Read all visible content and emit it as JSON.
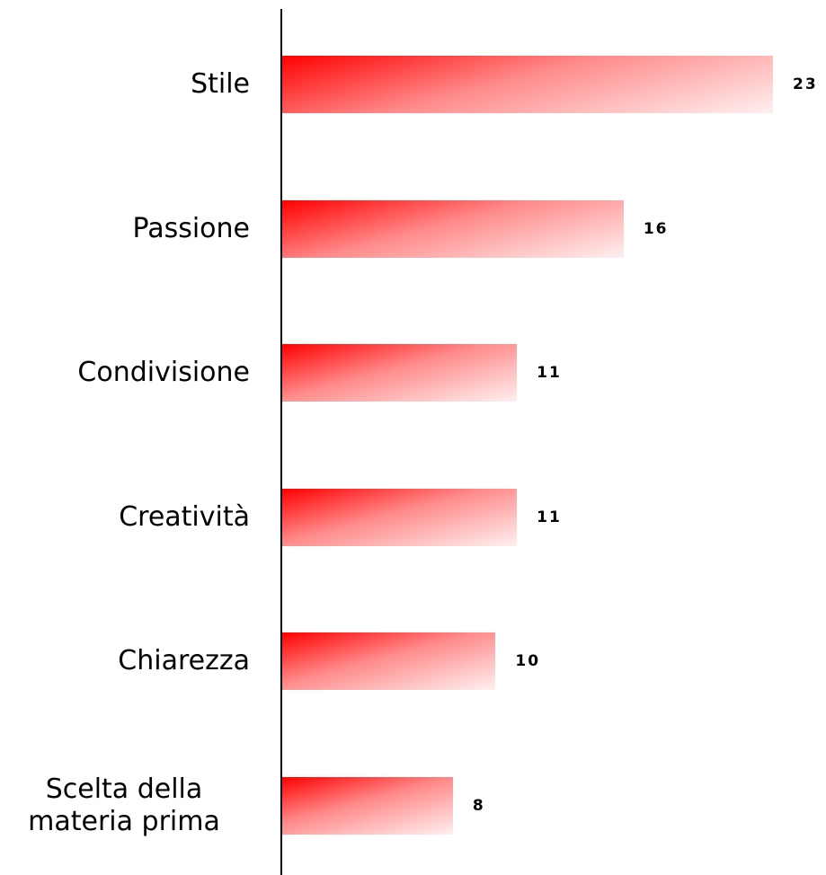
{
  "chart_data": {
    "type": "bar",
    "orientation": "horizontal",
    "categories": [
      "Stile",
      "Passione",
      "Condivisione",
      "Creatività",
      "Chiarezza",
      "Scelta della materia prima"
    ],
    "values": [
      23,
      16,
      11,
      11,
      10,
      8
    ],
    "color": "#ff0000"
  }
}
